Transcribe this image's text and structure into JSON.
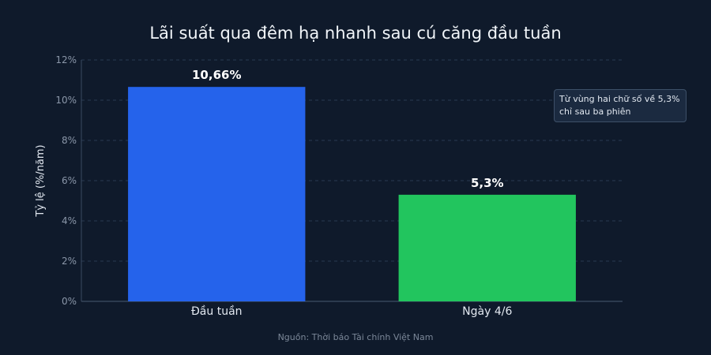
{
  "chart_data": {
    "type": "bar",
    "title": "Lãi suất qua đêm hạ nhanh sau cú căng đầu tuần",
    "categories": [
      "Đầu tuần",
      "Ngày 4/6"
    ],
    "values": [
      10.66,
      5.3
    ],
    "value_labels": [
      "10,66%",
      "5,3%"
    ],
    "colors": [
      "#2563eb",
      "#22c55e"
    ],
    "xlabel": "",
    "ylabel": "Tỷ lệ (%/năm)",
    "ylim": [
      0,
      12
    ],
    "yticks": [
      0,
      2,
      4,
      6,
      8,
      10,
      12
    ],
    "ytick_labels": [
      "0%",
      "2%",
      "4%",
      "6%",
      "8%",
      "10%",
      "12%"
    ],
    "grid": true,
    "annotation": [
      "Từ vùng hai chữ số về 5,3%",
      "chỉ sau ba phiên"
    ],
    "source": "Nguồn: Thời báo Tài chính Việt Nam"
  }
}
